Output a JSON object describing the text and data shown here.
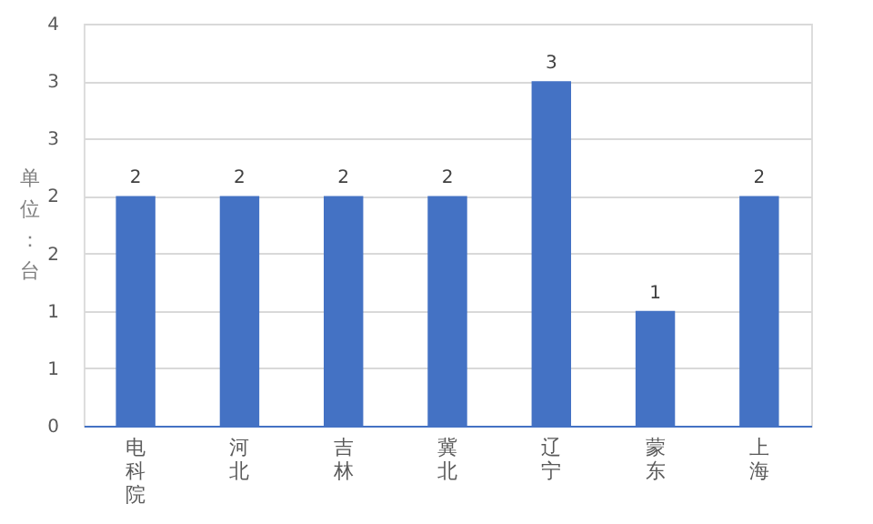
{
  "chart_data": {
    "type": "bar",
    "ylabel": "单位：台",
    "categories": [
      "电科院",
      "河北",
      "吉林",
      "冀北",
      "辽宁",
      "蒙东",
      "上海"
    ],
    "values": [
      2,
      2,
      2,
      2,
      3,
      1,
      2
    ],
    "color": "#4472c4",
    "ylim": [
      0,
      3.5
    ],
    "yticks": [
      {
        "value": 0,
        "label": "0"
      },
      {
        "value": 0.5,
        "label": "1"
      },
      {
        "value": 1,
        "label": "1"
      },
      {
        "value": 1.5,
        "label": "2"
      },
      {
        "value": 2,
        "label": "2"
      },
      {
        "value": 2.5,
        "label": "3"
      },
      {
        "value": 3,
        "label": "3"
      },
      {
        "value": 3.5,
        "label": "4"
      }
    ],
    "grid": "y",
    "data_labels": true
  }
}
